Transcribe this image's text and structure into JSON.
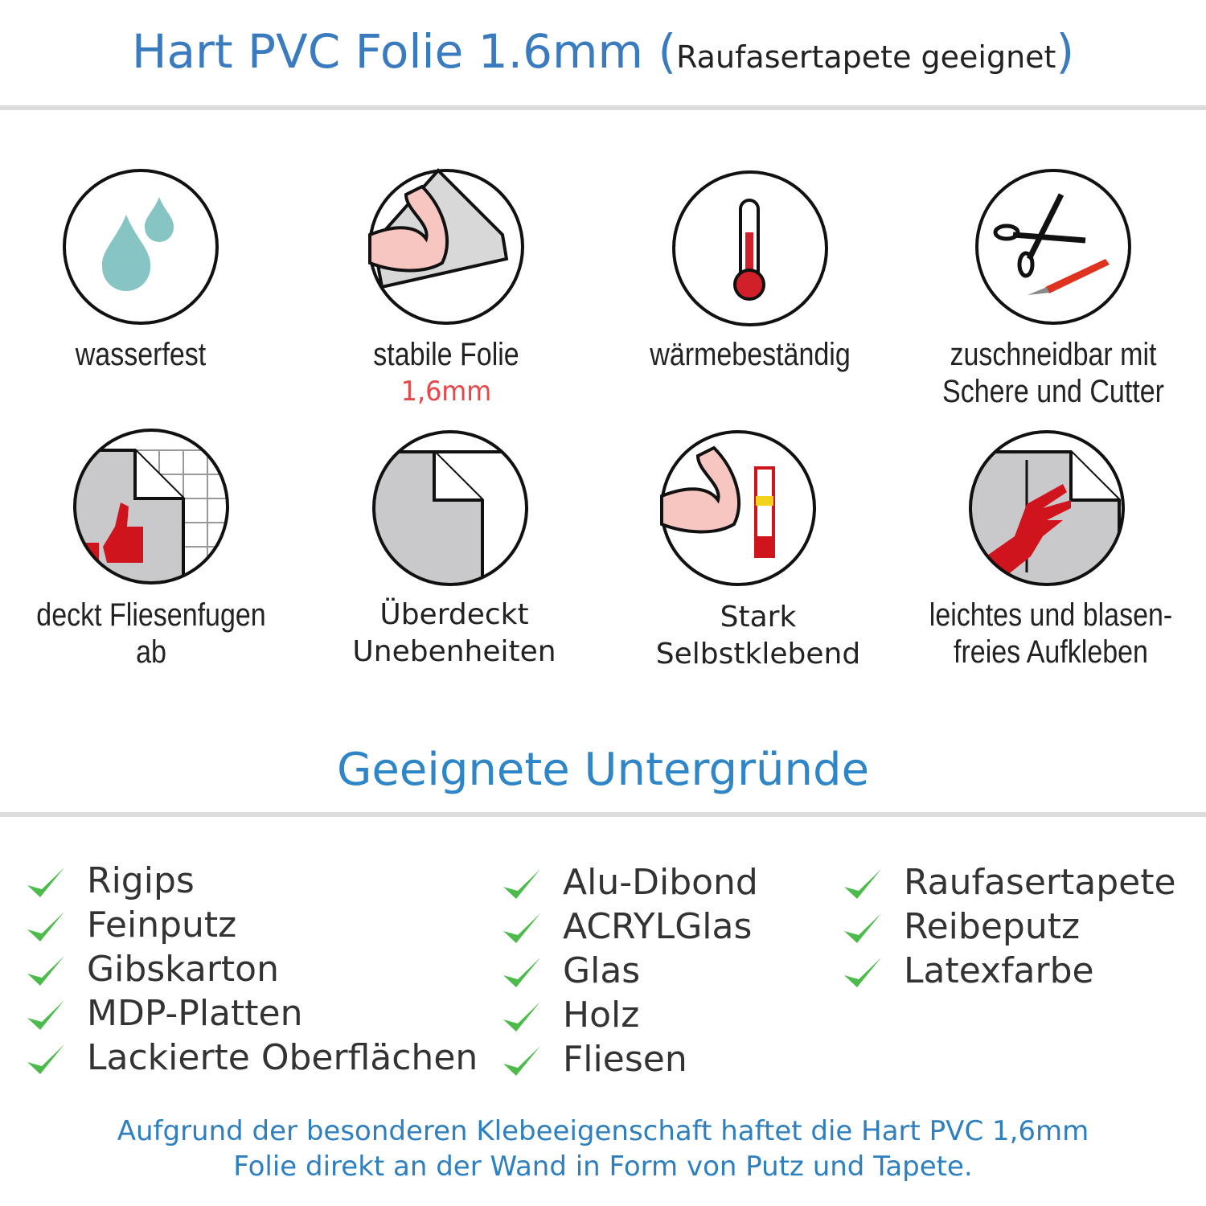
{
  "header": {
    "title": "Hart PVC Folie 1.6mm",
    "paren_open": "(",
    "subtitle": "Raufasertapete geeignet",
    "paren_close": ")"
  },
  "features": [
    {
      "icon": "water-drops-icon",
      "label": "wasserfest"
    },
    {
      "icon": "strong-arm-foil-icon",
      "label": "stabile Folie",
      "sublabel": "1,6mm"
    },
    {
      "icon": "thermometer-icon",
      "label": "wärmebeständig"
    },
    {
      "icon": "scissors-cutter-icon",
      "label": "zuschneidbar mit",
      "label2": "Schere und Cutter"
    },
    {
      "icon": "thumbs-up-tiles-icon",
      "label": "deckt Fliesenfugen ab"
    },
    {
      "icon": "foil-corner-icon",
      "label": "Überdeckt",
      "label2": "Unebenheiten"
    },
    {
      "icon": "strong-arm-glue-icon",
      "label": "Stark",
      "label2": "Selbstklebend"
    },
    {
      "icon": "hand-smoothing-icon",
      "label": "leichtes und blasen-",
      "label2": "freies Aufkleben"
    }
  ],
  "surfaces": {
    "title": "Geeignete Untergründe",
    "col1": [
      "Rigips",
      "Feinputz",
      "Gibskarton",
      "MDP-Platten",
      "Lackierte Oberflächen"
    ],
    "col2": [
      "Alu-Dibond",
      "ACRYLGlas",
      "Glas",
      "Holz",
      "Fliesen"
    ],
    "col3": [
      "Raufasertapete",
      "Reibeputz",
      "Latexfarbe"
    ]
  },
  "footer": {
    "line1": "Aufgrund der besonderen Klebeeigenschaft haftet die Hart PVC 1,6mm",
    "line2": "Folie direkt an der Wand in Form von Putz und Tapete."
  },
  "colors": {
    "title": "#3a7bbf",
    "check": "#4cbb4c",
    "accent_red": "#e8474a",
    "drop": "#86c5c4"
  }
}
